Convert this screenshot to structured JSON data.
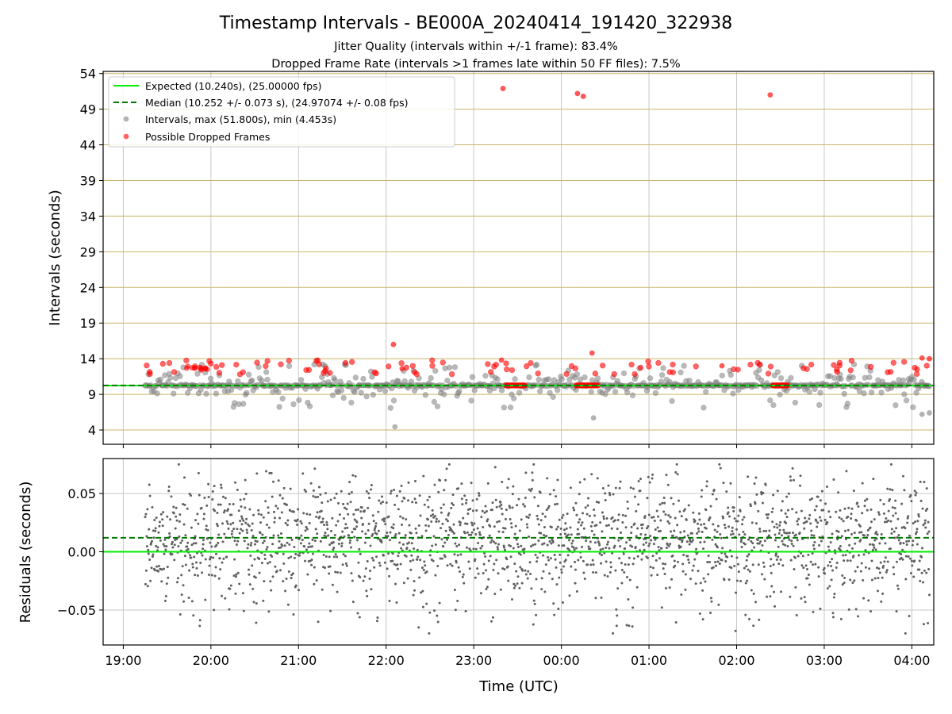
{
  "title": "Timestamp Intervals - BE000A_20240414_191420_322938",
  "subtitle_lines": [
    "Jitter Quality (intervals within +/-1 frame): 83.4%",
    "Dropped Frame Rate (intervals >1 frames late within 50 FF files): 7.5%"
  ],
  "colors": {
    "expected": "#00ee00",
    "median": "#007a00",
    "intervals": "#808080",
    "dropped": "#ff0000",
    "residuals": "#606060",
    "hgrid_top": "#c9b56a",
    "grid": "#c8c8c8"
  },
  "chart_data": [
    {
      "type": "scatter",
      "panel": "top",
      "ylabel": "Intervals (seconds)",
      "xlabel": "",
      "ylim": [
        2,
        54.3
      ],
      "yticks": [
        4,
        9,
        14,
        19,
        24,
        29,
        34,
        39,
        44,
        49,
        54
      ],
      "x_range_hours": [
        -0.23,
        9.25
      ],
      "xtick_hours": [
        0,
        1,
        2,
        3,
        4,
        5,
        6,
        7,
        8,
        9
      ],
      "xtick_labels": [
        "19:00",
        "20:00",
        "21:00",
        "22:00",
        "23:00",
        "00:00",
        "01:00",
        "02:00",
        "03:00",
        "04:00"
      ],
      "x_data_hours": [
        0.25,
        9.2
      ],
      "grid": "horizontal and vertical",
      "legend_position": "top-left",
      "legend": [
        "Expected (10.240s), (25.00000 fps)",
        "Median (10.252 +/- 0.073 s), (24.97074 +/- 0.08 fps)",
        "Intervals, max (51.800s), min (4.453s)",
        "Possible Dropped Frames"
      ],
      "expected": 10.24,
      "median": 10.252,
      "dropped_clusters": [
        {
          "from": "23:22",
          "to": "23:35",
          "value": 10.25
        },
        {
          "from": "00:10",
          "to": "00:25",
          "value": 10.25
        },
        {
          "from": "02:25",
          "to": "02:35",
          "value": 10.25
        }
      ],
      "dropped_outliers": [
        {
          "x": "23:20",
          "y": 51.9
        },
        {
          "x": "00:11",
          "y": 51.2
        },
        {
          "x": "00:15",
          "y": 50.8
        },
        {
          "x": "02:23",
          "y": 51.0
        },
        {
          "x": "22:05",
          "y": 16.0
        },
        {
          "x": "00:21",
          "y": 14.8
        },
        {
          "x": "04:07",
          "y": 14.1
        },
        {
          "x": "04:12",
          "y": 14.0
        },
        {
          "x": "22:11",
          "y": 12.6
        },
        {
          "x": "23:19",
          "y": 13.8
        },
        {
          "x": "01:50",
          "y": 13.0
        }
      ],
      "other_outliers": [
        {
          "x": "22:06",
          "y": 4.45
        },
        {
          "x": "00:22",
          "y": 5.7
        },
        {
          "x": "04:07",
          "y": 6.2
        },
        {
          "x": "04:12",
          "y": 6.4
        }
      ]
    },
    {
      "type": "scatter",
      "panel": "bottom",
      "xlabel": "Time (UTC)",
      "ylabel": "Residuals (seconds)",
      "ylim": [
        -0.08,
        0.08
      ],
      "yticks": [
        -0.05,
        0.0,
        0.05
      ],
      "ytick_labels": [
        "−0.05",
        "0.00",
        "0.05"
      ],
      "x_range_hours": [
        -0.23,
        9.25
      ],
      "x_data_hours": [
        0.25,
        9.2
      ],
      "expected_residual": 0.0,
      "median_residual": 0.012,
      "residual_spread": [
        -0.07,
        0.075
      ],
      "grid": "horizontal and vertical"
    }
  ]
}
